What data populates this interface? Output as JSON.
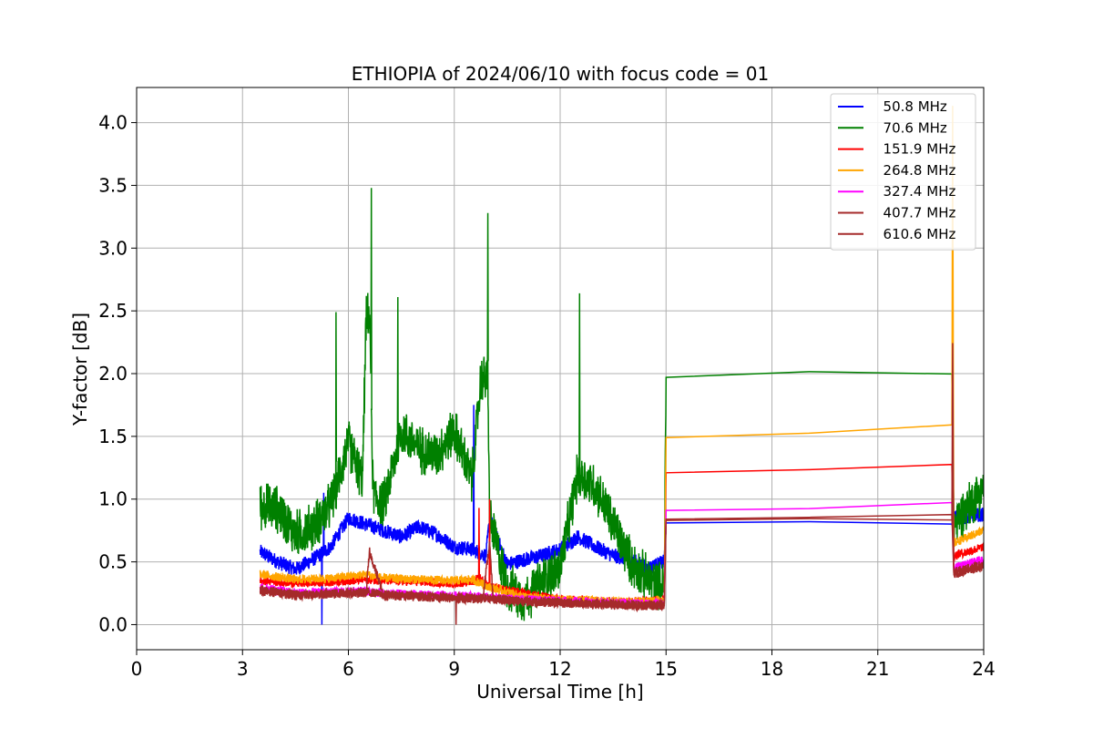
{
  "chart_data": {
    "type": "line",
    "title": "ETHIOPIA of 2024/06/10 with focus code = 01",
    "xlabel": "Universal Time [h]",
    "ylabel": "Y-factor [dB]",
    "xlim": [
      0,
      24
    ],
    "ylim": [
      -0.2,
      4.28
    ],
    "xticks": [
      "0",
      "3",
      "6",
      "9",
      "12",
      "15",
      "18",
      "21",
      "24"
    ],
    "yticks": [
      "0.0",
      "0.5",
      "1.0",
      "1.5",
      "2.0",
      "2.5",
      "3.0",
      "3.5",
      "4.0"
    ],
    "grid": true,
    "legend_position": "top-right",
    "series": [
      {
        "name": "  50.8 MHz",
        "color": "#0000ff",
        "points": [
          [
            3.5,
            0.58
          ],
          [
            4.0,
            0.5
          ],
          [
            4.5,
            0.44
          ],
          [
            5.0,
            0.52
          ],
          [
            5.5,
            0.62
          ],
          [
            6.0,
            0.85
          ],
          [
            6.5,
            0.8
          ],
          [
            7.0,
            0.75
          ],
          [
            7.5,
            0.7
          ],
          [
            8.0,
            0.78
          ],
          [
            8.5,
            0.72
          ],
          [
            9.0,
            0.62
          ],
          [
            9.5,
            0.6
          ],
          [
            9.9,
            0.55
          ],
          [
            10.0,
            0.85
          ],
          [
            10.5,
            0.48
          ],
          [
            11.0,
            0.52
          ],
          [
            11.5,
            0.55
          ],
          [
            12.0,
            0.6
          ],
          [
            12.5,
            0.7
          ],
          [
            13.0,
            0.62
          ],
          [
            13.5,
            0.55
          ],
          [
            14.0,
            0.52
          ],
          [
            14.5,
            0.45
          ],
          [
            14.95,
            0.5
          ],
          [
            15.0,
            0.81
          ],
          [
            23.1,
            0.83
          ],
          [
            23.15,
            0.85
          ],
          [
            24.0,
            0.88
          ]
        ],
        "peaks": [
          [
            5.25,
            0.0
          ],
          [
            5.3,
            1.05
          ],
          [
            9.55,
            1.75
          ]
        ]
      },
      {
        "name": "  70.6 MHz",
        "color": "#008000",
        "points": [
          [
            3.5,
            0.95
          ],
          [
            4.0,
            0.92
          ],
          [
            4.5,
            0.72
          ],
          [
            5.0,
            0.78
          ],
          [
            5.5,
            0.95
          ],
          [
            6.0,
            1.45
          ],
          [
            6.4,
            1.15
          ],
          [
            6.5,
            2.42
          ],
          [
            6.6,
            2.48
          ],
          [
            6.7,
            1.05
          ],
          [
            7.0,
            0.95
          ],
          [
            7.5,
            1.55
          ],
          [
            8.0,
            1.4
          ],
          [
            8.5,
            1.35
          ],
          [
            9.0,
            1.55
          ],
          [
            9.5,
            1.15
          ],
          [
            9.75,
            1.95
          ],
          [
            9.95,
            1.98
          ],
          [
            10.0,
            0.85
          ],
          [
            10.5,
            0.3
          ],
          [
            11.0,
            0.2
          ],
          [
            11.5,
            0.35
          ],
          [
            12.0,
            0.45
          ],
          [
            12.5,
            1.2
          ],
          [
            13.0,
            1.1
          ],
          [
            13.5,
            0.8
          ],
          [
            14.0,
            0.5
          ],
          [
            14.5,
            0.35
          ],
          [
            14.95,
            0.3
          ],
          [
            15.0,
            1.97
          ],
          [
            23.1,
            2.06
          ],
          [
            23.15,
            0.8
          ],
          [
            24.0,
            1.1
          ]
        ],
        "peaks": [
          [
            5.65,
            2.49
          ],
          [
            6.65,
            3.48
          ],
          [
            7.4,
            2.61
          ],
          [
            9.95,
            3.28
          ],
          [
            12.55,
            2.64
          ]
        ]
      },
      {
        "name": "  151.9 MHz",
        "color": "#ff0000",
        "points": [
          [
            3.5,
            0.35
          ],
          [
            4.5,
            0.33
          ],
          [
            5.5,
            0.34
          ],
          [
            6.5,
            0.36
          ],
          [
            7.0,
            0.35
          ],
          [
            8.0,
            0.34
          ],
          [
            9.0,
            0.33
          ],
          [
            9.5,
            0.34
          ],
          [
            9.7,
            0.38
          ],
          [
            10.0,
            0.3
          ],
          [
            11.0,
            0.25
          ],
          [
            12.0,
            0.2
          ],
          [
            13.0,
            0.19
          ],
          [
            14.0,
            0.18
          ],
          [
            14.95,
            0.2
          ],
          [
            15.0,
            1.21
          ],
          [
            23.1,
            1.26
          ],
          [
            23.15,
            0.55
          ],
          [
            24.0,
            0.62
          ]
        ],
        "peaks": [
          [
            9.7,
            0.93
          ],
          [
            10.0,
            1.0
          ]
        ]
      },
      {
        "name": "  264.8 MHz",
        "color": "#ffa500",
        "points": [
          [
            3.5,
            0.4
          ],
          [
            4.5,
            0.36
          ],
          [
            5.5,
            0.37
          ],
          [
            6.5,
            0.4
          ],
          [
            7.0,
            0.37
          ],
          [
            8.0,
            0.36
          ],
          [
            9.0,
            0.35
          ],
          [
            9.5,
            0.36
          ],
          [
            10.0,
            0.3
          ],
          [
            11.0,
            0.22
          ],
          [
            12.0,
            0.2
          ],
          [
            13.0,
            0.19
          ],
          [
            14.0,
            0.18
          ],
          [
            14.95,
            0.2
          ],
          [
            15.0,
            1.49
          ],
          [
            23.1,
            1.56
          ],
          [
            23.12,
            4.1
          ],
          [
            23.15,
            0.65
          ],
          [
            24.0,
            0.75
          ]
        ],
        "peaks": []
      },
      {
        "name": "  327.4 MHz",
        "color": "#ff00ff",
        "points": [
          [
            3.5,
            0.3
          ],
          [
            4.5,
            0.25
          ],
          [
            5.5,
            0.26
          ],
          [
            6.5,
            0.27
          ],
          [
            7.0,
            0.25
          ],
          [
            8.0,
            0.24
          ],
          [
            9.0,
            0.23
          ],
          [
            10.0,
            0.22
          ],
          [
            11.0,
            0.2
          ],
          [
            12.0,
            0.19
          ],
          [
            13.0,
            0.18
          ],
          [
            14.0,
            0.17
          ],
          [
            14.95,
            0.17
          ],
          [
            15.0,
            0.91
          ],
          [
            23.1,
            0.94
          ],
          [
            23.15,
            0.45
          ],
          [
            24.0,
            0.52
          ]
        ],
        "peaks": []
      },
      {
        "name": "  407.7 MHz",
        "color": "#a52a2a",
        "points": [
          [
            3.5,
            0.28
          ],
          [
            4.5,
            0.24
          ],
          [
            5.5,
            0.25
          ],
          [
            6.5,
            0.26
          ],
          [
            7.0,
            0.24
          ],
          [
            8.0,
            0.23
          ],
          [
            9.0,
            0.22
          ],
          [
            10.0,
            0.21
          ],
          [
            11.0,
            0.19
          ],
          [
            12.0,
            0.18
          ],
          [
            13.0,
            0.17
          ],
          [
            14.0,
            0.16
          ],
          [
            14.95,
            0.16
          ],
          [
            15.0,
            0.84
          ],
          [
            23.1,
            0.87
          ],
          [
            23.15,
            0.42
          ],
          [
            24.0,
            0.48
          ]
        ],
        "peaks": []
      },
      {
        "name": "  610.6 MHz",
        "color": "#a52a2a",
        "points": [
          [
            3.5,
            0.27
          ],
          [
            4.5,
            0.23
          ],
          [
            5.5,
            0.24
          ],
          [
            6.5,
            0.25
          ],
          [
            6.6,
            0.58
          ],
          [
            7.0,
            0.23
          ],
          [
            8.0,
            0.22
          ],
          [
            9.0,
            0.21
          ],
          [
            9.8,
            0.2
          ],
          [
            10.0,
            0.65
          ],
          [
            10.1,
            0.2
          ],
          [
            11.0,
            0.18
          ],
          [
            12.0,
            0.17
          ],
          [
            13.0,
            0.16
          ],
          [
            14.0,
            0.15
          ],
          [
            14.95,
            0.15
          ],
          [
            15.0,
            0.83
          ],
          [
            23.1,
            0.86
          ],
          [
            23.12,
            2.25
          ],
          [
            23.15,
            0.4
          ],
          [
            24.0,
            0.46
          ]
        ],
        "peaks": [
          [
            9.05,
            0.0
          ]
        ]
      }
    ]
  }
}
